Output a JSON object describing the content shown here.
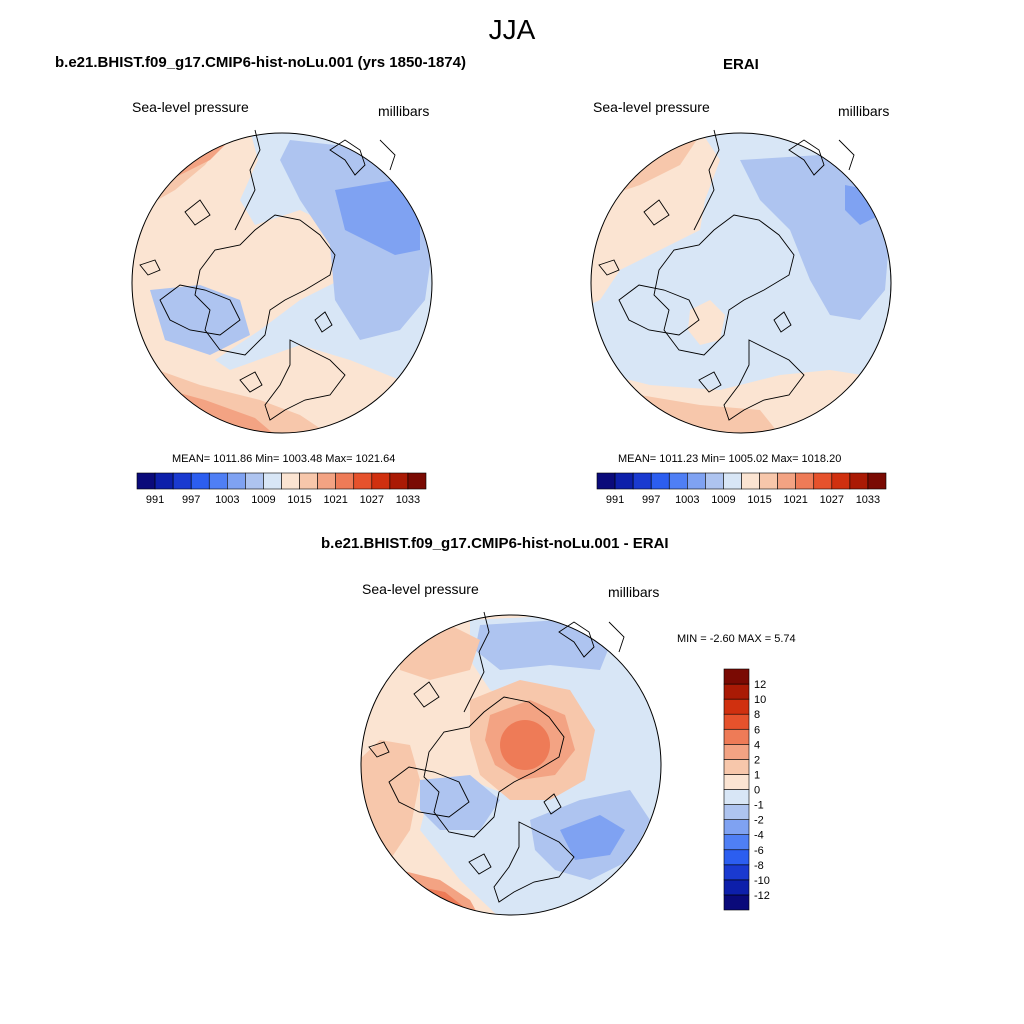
{
  "figure": {
    "season": "JJA"
  },
  "panels": {
    "model": {
      "title": "b.e21.BHIST.f09_g17.CMIP6-hist-noLu.001 (yrs 1850-1874)",
      "left_label": "Sea-level pressure",
      "right_label": "millibars",
      "stats": "MEAN= 1011.86  Min= 1003.48  Max= 1021.64"
    },
    "obs": {
      "title": "ERAI",
      "left_label": "Sea-level pressure",
      "right_label": "millibars",
      "stats": "MEAN= 1011.23  Min= 1005.02  Max= 1018.20"
    },
    "diff": {
      "title": "b.e21.BHIST.f09_g17.CMIP6-hist-noLu.001 - ERAI",
      "left_label": "Sea-level pressure",
      "right_label": "millibars",
      "stats": "MIN =  -2.60 MAX =   5.74"
    }
  },
  "colorbars": {
    "absolute": {
      "colors": [
        "#0a0a7a",
        "#0d1faa",
        "#1a3ad0",
        "#2c5ef0",
        "#4f7ff5",
        "#7fa2f2",
        "#aec4f0",
        "#d8e6f6",
        "#fbe4d2",
        "#f7c7ab",
        "#f3a383",
        "#ee7b57",
        "#e6522c",
        "#d0300f",
        "#aa1a05",
        "#7a0a03"
      ],
      "tick_labels": [
        "991",
        "997",
        "1003",
        "1009",
        "1015",
        "1021",
        "1027",
        "1033"
      ]
    },
    "difference": {
      "colors": [
        "#0a0a7a",
        "#0d1faa",
        "#1a3ad0",
        "#2c5ef0",
        "#4f7ff5",
        "#7fa2f2",
        "#aec4f0",
        "#d8e6f6",
        "#fbe4d2",
        "#f7c7ab",
        "#f3a383",
        "#ee7b57",
        "#e6522c",
        "#d0300f",
        "#aa1a05",
        "#7a0a03"
      ],
      "tick_labels": [
        "-12",
        "-10",
        "-8",
        "-6",
        "-4",
        "-2",
        "-1",
        "0",
        "1",
        "2",
        "4",
        "6",
        "8",
        "10",
        "12"
      ]
    }
  },
  "map_colors": {
    "model": {
      "base": "#d8e6f6",
      "warm": "#fbe4d2",
      "pink": "#f7c7ab",
      "orange": "#f3a383",
      "coral": "#ee7b57",
      "blue": "#aec4f0",
      "mid": "#7fa2f2"
    },
    "obs": {
      "base": "#d8e6f6",
      "warm": "#fbe4d2",
      "pink": "#f7c7ab",
      "orange": "#f3a383",
      "blue": "#aec4f0",
      "mid": "#7fa2f2"
    },
    "diff": {
      "base": "#fbe4d2",
      "pink": "#f7c7ab",
      "orange": "#f3a383",
      "coral": "#ee7b57",
      "pale": "#d8e6f6",
      "blue": "#aec4f0",
      "mid": "#7fa2f2"
    }
  }
}
